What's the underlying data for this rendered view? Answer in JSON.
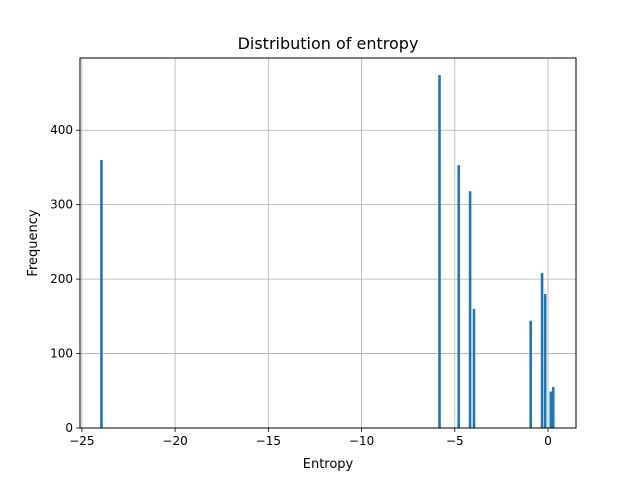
{
  "chart_data": {
    "type": "bar",
    "title": "Distribution of entropy",
    "xlabel": "Entropy",
    "ylabel": "Frequency",
    "xlim": [
      -25.1,
      1.5
    ],
    "ylim": [
      0,
      497
    ],
    "x_ticks": [
      -25,
      -20,
      -15,
      -10,
      -5,
      0
    ],
    "x_tick_labels": [
      "−25",
      "−20",
      "−15",
      "−10",
      "−5",
      "0"
    ],
    "y_ticks": [
      0,
      100,
      200,
      300,
      400
    ],
    "y_tick_labels": [
      "0",
      "100",
      "200",
      "300",
      "400"
    ],
    "grid": true,
    "bar_color": "#1f77b4",
    "bins": [
      {
        "x": -23.95,
        "value": 360
      },
      {
        "x": -5.82,
        "value": 474
      },
      {
        "x": -4.79,
        "value": 353
      },
      {
        "x": -4.18,
        "value": 318
      },
      {
        "x": -3.97,
        "value": 160
      },
      {
        "x": -0.93,
        "value": 144
      },
      {
        "x": -0.32,
        "value": 208
      },
      {
        "x": -0.15,
        "value": 180
      },
      {
        "x": 0.15,
        "value": 49
      },
      {
        "x": 0.28,
        "value": 55
      }
    ]
  }
}
